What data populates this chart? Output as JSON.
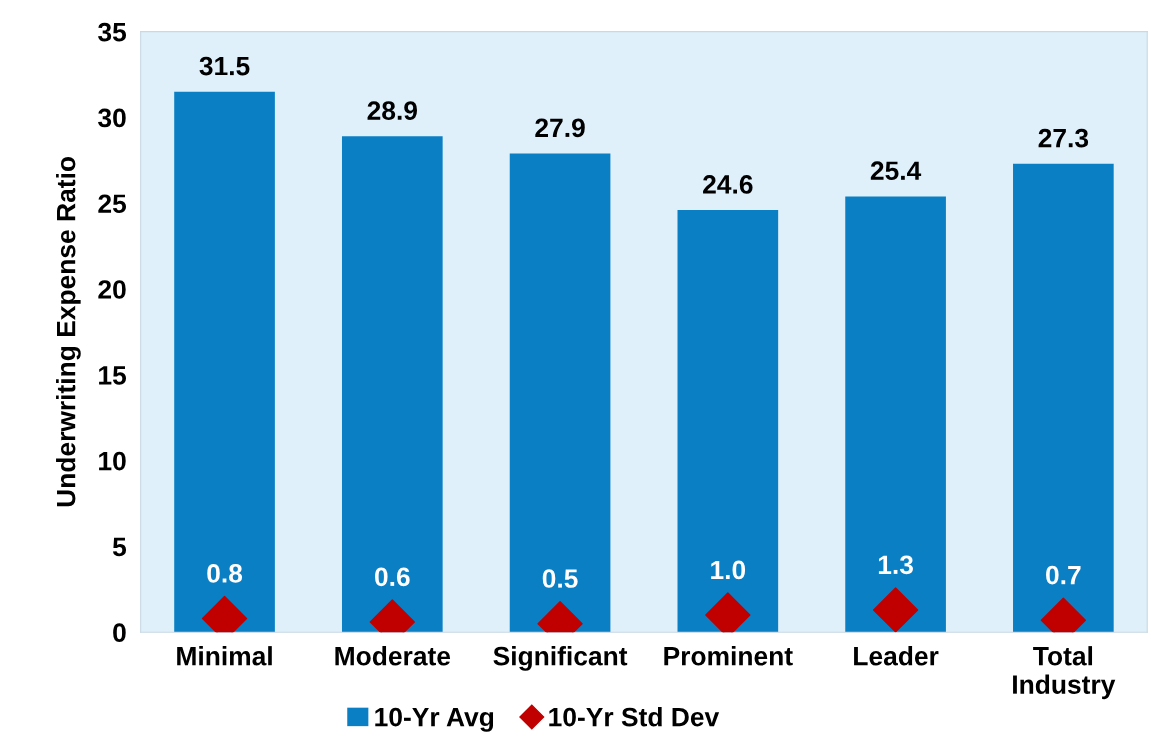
{
  "chart_data": {
    "type": "bar",
    "ylabel": "Underwriting Expense Ratio",
    "categories": [
      "Minimal",
      "Moderate",
      "Significant",
      "Prominent",
      "Leader",
      "Total\nIndustry"
    ],
    "series": [
      {
        "name": "10-Yr Avg",
        "color": "#0a7fc4",
        "values": [
          31.5,
          28.9,
          27.9,
          24.6,
          25.4,
          27.3
        ]
      },
      {
        "name": "10-Yr Std Dev",
        "type": "scatter",
        "color": "#c00000",
        "marker": "diamond",
        "x": [
          "Minimal",
          "Moderate",
          "Significant",
          "Prominent",
          "Leader",
          "Total\nIndustry"
        ],
        "values": [
          0.8,
          0.6,
          0.5,
          1.0,
          1.3,
          0.7
        ],
        "value_labels": [
          "0.8",
          "0.6",
          "0.5",
          "1.0",
          "1.3",
          "0.7"
        ]
      }
    ],
    "ylim": [
      0,
      35
    ],
    "yticks": [
      0,
      5,
      10,
      15,
      20,
      25,
      30,
      35
    ],
    "data_labels": true,
    "grid": false,
    "legend": "bottom"
  }
}
